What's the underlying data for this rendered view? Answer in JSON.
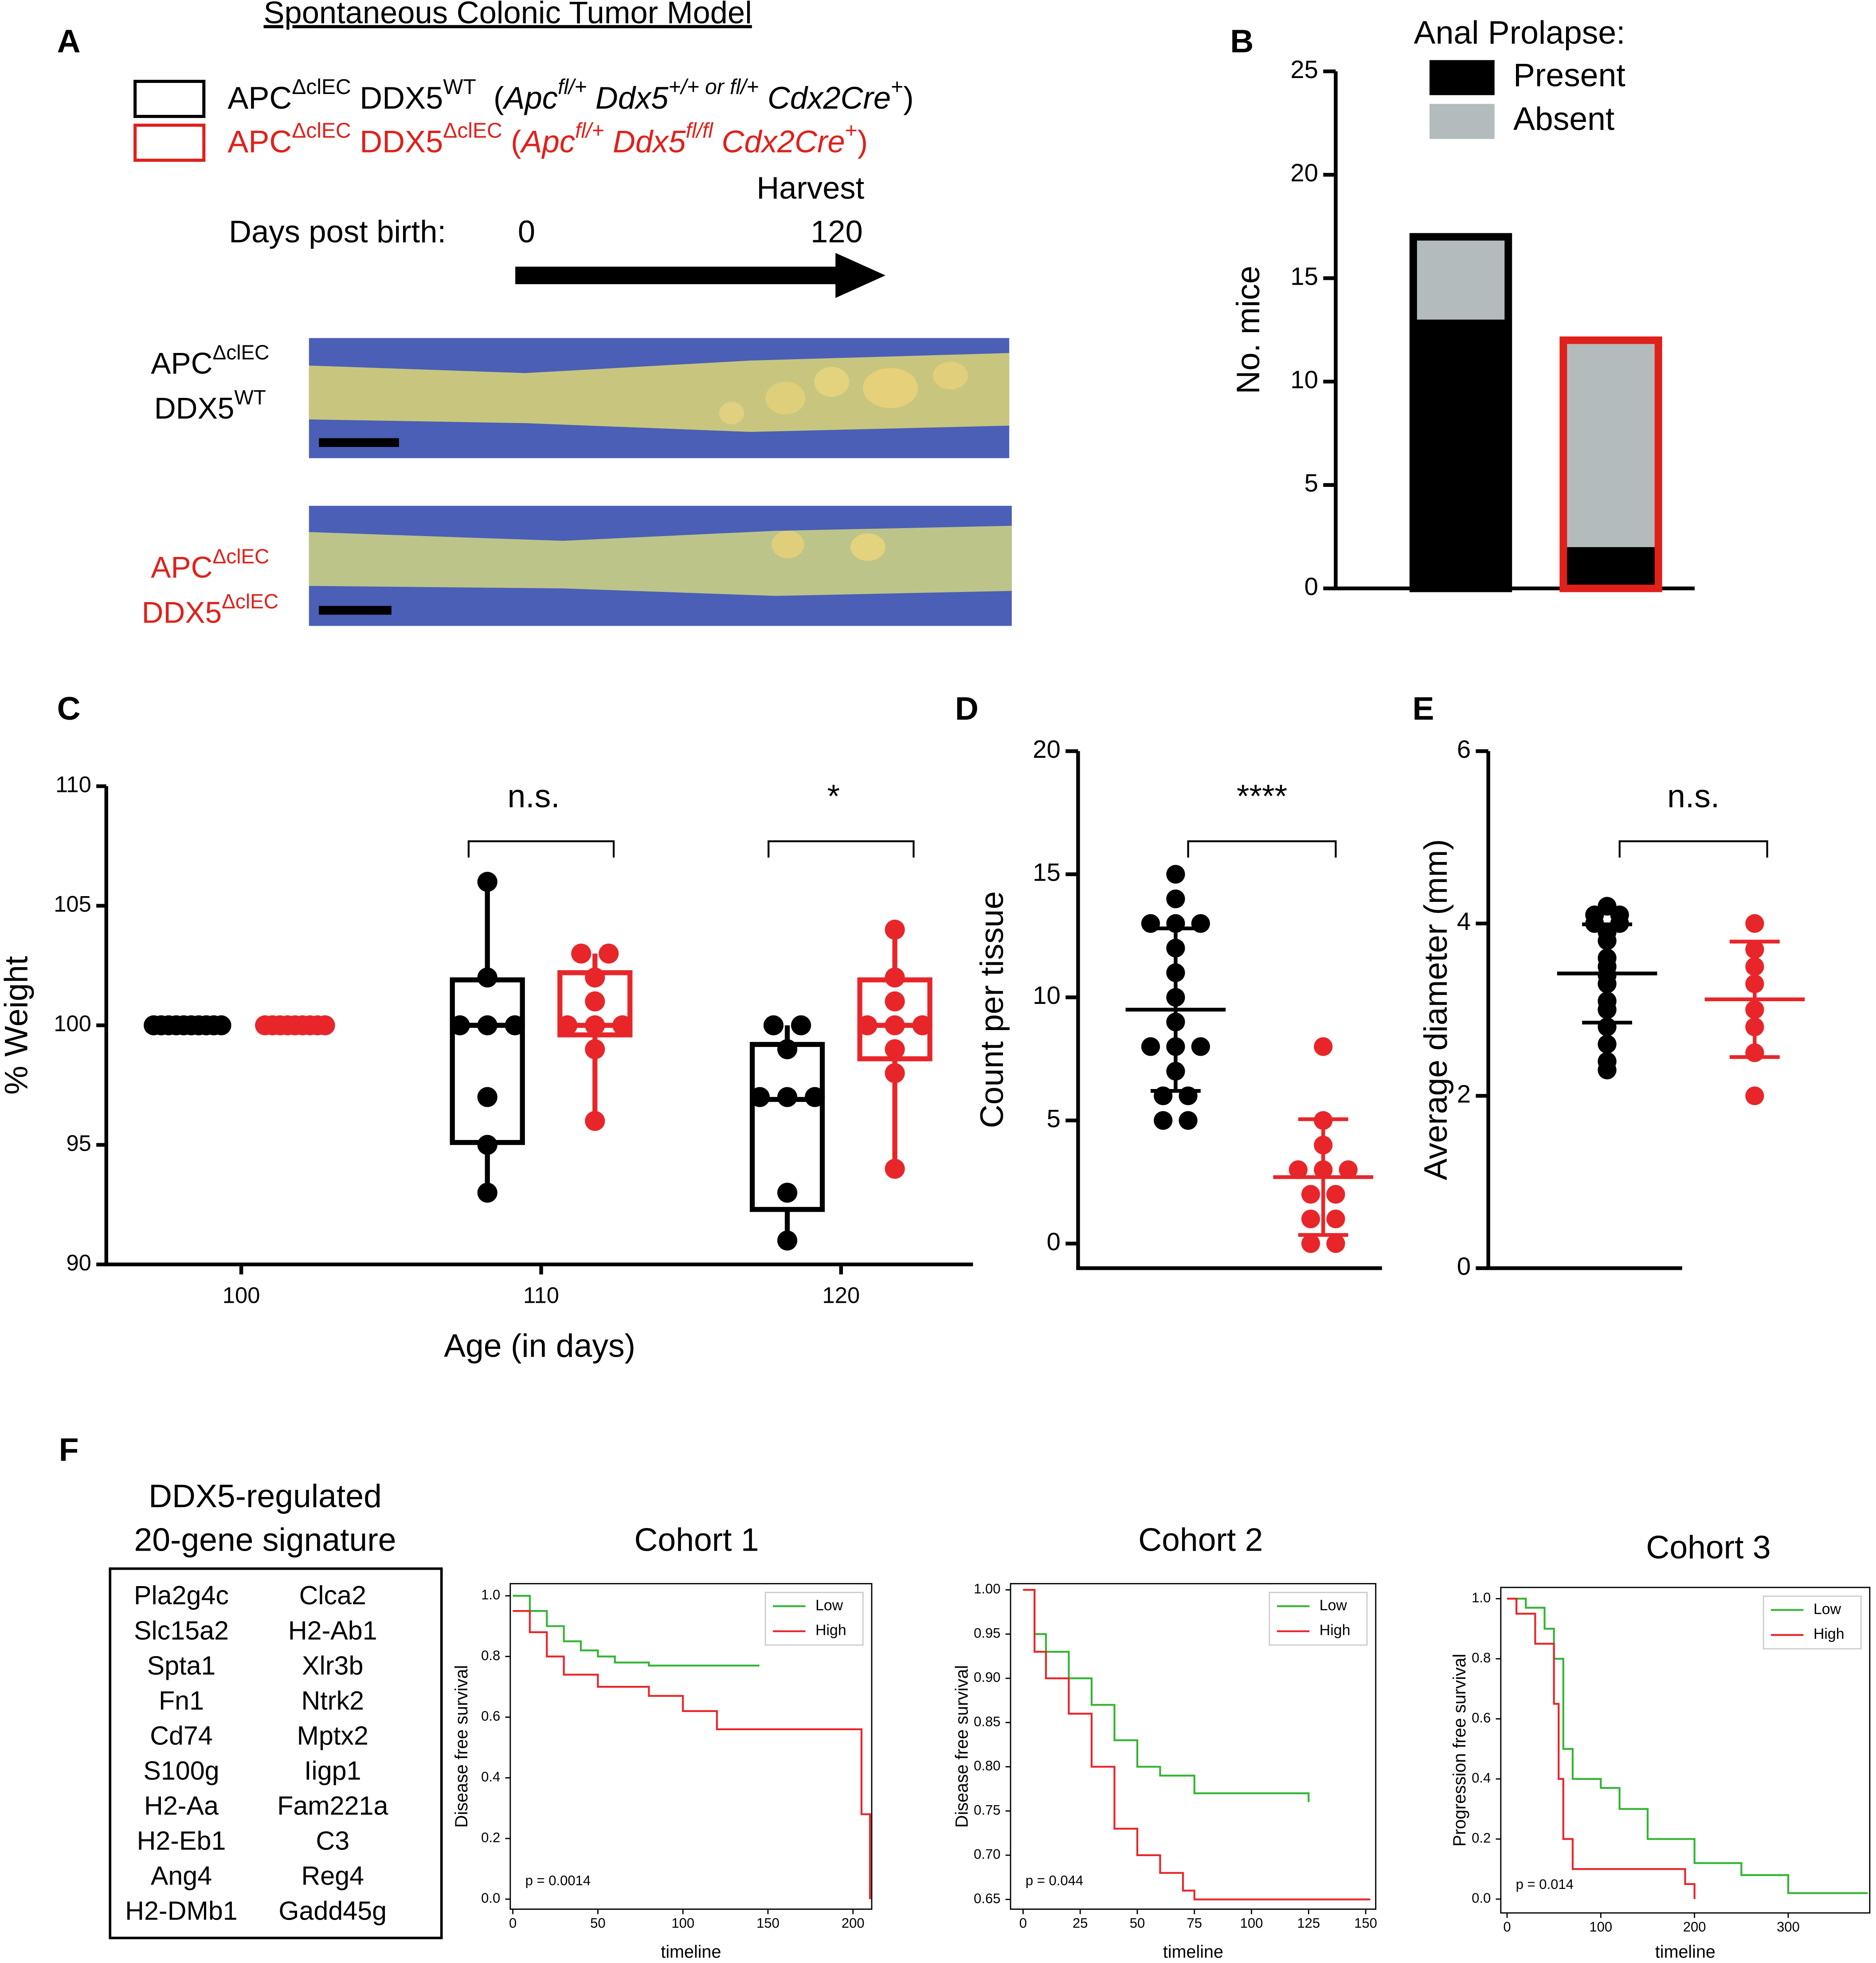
{
  "panel_labels": [
    "A",
    "B",
    "C",
    "D",
    "E",
    "F"
  ],
  "panel_a": {
    "title": "Spontaneous Colonic Tumor Model",
    "legend": [
      {
        "color": "#000000",
        "parts": [
          {
            "text": "APC"
          },
          {
            "text": "ΔclEC",
            "sup": true
          },
          {
            "text": " DDX5"
          },
          {
            "text": "WT",
            "sup": true
          },
          {
            "text": "  ("
          },
          {
            "text": "Apc",
            "italic": true
          },
          {
            "text": "fl/+",
            "sup": true,
            "italic": true
          },
          {
            "text": " Ddx5",
            "italic": true
          },
          {
            "text": "+/+ or fl/+",
            "sup": true,
            "italic": true
          },
          {
            "text": " Cdx2Cre",
            "italic": true
          },
          {
            "text": "+",
            "sup": true
          },
          {
            "text": ")"
          }
        ]
      },
      {
        "color": "#e0201b",
        "parts": [
          {
            "text": "APC"
          },
          {
            "text": "ΔclEC",
            "sup": true
          },
          {
            "text": " DDX5"
          },
          {
            "text": "ΔclEC",
            "sup": true
          },
          {
            "text": " ("
          },
          {
            "text": "Apc",
            "italic": true
          },
          {
            "text": "fl/+",
            "sup": true,
            "italic": true
          },
          {
            "text": " Ddx5",
            "italic": true
          },
          {
            "text": "fl/fl",
            "sup": true,
            "italic": true
          },
          {
            "text": " Cdx2Cre",
            "italic": true
          },
          {
            "text": "+",
            "sup": true
          },
          {
            "text": ")"
          }
        ]
      }
    ],
    "timeline": {
      "label": "Days post birth:",
      "start": 0,
      "end": 120,
      "event": "Harvest"
    },
    "images": [
      {
        "color": "#000000",
        "label": [
          [
            {
              "text": "APC"
            },
            {
              "text": "ΔclEC",
              "sup": true
            }
          ],
          [
            {
              "text": "DDX5"
            },
            {
              "text": "WT",
              "sup": true
            }
          ]
        ]
      },
      {
        "color": "#e0201b",
        "label": [
          [
            {
              "text": "APC"
            },
            {
              "text": "ΔclEC",
              "sup": true
            }
          ],
          [
            {
              "text": "DDX5"
            },
            {
              "text": "ΔclEC",
              "sup": true
            }
          ]
        ]
      }
    ]
  },
  "gene_signature": {
    "title": [
      "DDX5-regulated",
      "20-gene signature"
    ],
    "genes": [
      "Pla2g4c",
      "Slc15a2",
      "Spta1",
      "Fn1",
      "Cd74",
      "S100g",
      "H2-Aa",
      "H2-Eb1",
      "Ang4",
      "H2-DMb1",
      "Clca2",
      "H2-Ab1",
      "Xlr3b",
      "Ntrk2",
      "Mptx2",
      "Iigp1",
      "Fam221a",
      "C3",
      "Reg4",
      "Gadd45g"
    ]
  },
  "chart_data": [
    {
      "type": "bar",
      "stacked": true,
      "ylabel": "No. mice",
      "legend_title": "Anal Prolapse:",
      "legend": "upper right",
      "categories": [
        null,
        null
      ],
      "edgecolors": [
        "#000000",
        "#e0201b"
      ],
      "ylim": [
        0,
        25
      ],
      "yticks": [
        0,
        5,
        10,
        15,
        20,
        25
      ],
      "series": [
        {
          "name": "Present",
          "color": "#000000",
          "values": [
            13,
            2
          ]
        },
        {
          "name": "Absent",
          "color": "#b3bbbd",
          "values": [
            4,
            10
          ]
        }
      ]
    },
    {
      "type": "box",
      "xlabel": "Age (in days)",
      "ylabel": "% Weight",
      "xlim": [
        95.5,
        124.4
      ],
      "xticks": [
        100,
        110,
        120
      ],
      "ylim": [
        90,
        110
      ],
      "yticks": [
        90,
        95,
        100,
        105,
        110
      ],
      "series": [
        {
          "color": "#000000",
          "groups": [
            {
              "x": 100,
              "values": [
                100,
                100,
                100,
                100,
                100,
                100,
                100,
                100,
                100,
                100
              ]
            },
            {
              "x": 110,
              "values": [
                106,
                102,
                100,
                100,
                100,
                97,
                95,
                93
              ],
              "box": {
                "whislo": 93,
                "q1": 95.1,
                "median": 100,
                "q3": 101.9,
                "whishi": 106
              }
            },
            {
              "x": 120,
              "values": [
                100,
                100,
                99,
                97,
                97,
                97,
                93,
                91
              ],
              "box": {
                "whislo": 91,
                "q1": 92.3,
                "median": 96.9,
                "q3": 99.2,
                "whishi": 100
              }
            }
          ]
        },
        {
          "color": "#e8262a",
          "groups": [
            {
              "x": 100,
              "values": [
                100,
                100,
                100,
                100,
                100,
                100,
                100,
                100,
                100
              ]
            },
            {
              "x": 110,
              "values": [
                103,
                103,
                102,
                101,
                100,
                100,
                100,
                99,
                96
              ],
              "box": {
                "whislo": 96,
                "q1": 99.6,
                "median": 100,
                "q3": 102.2,
                "whishi": 103
              }
            },
            {
              "x": 120,
              "values": [
                104,
                102,
                101,
                100,
                100,
                100,
                99,
                98,
                94
              ],
              "box": {
                "whislo": 94,
                "q1": 98.6,
                "median": 100,
                "q3": 101.9,
                "whishi": 104
              }
            }
          ]
        }
      ],
      "annotations": [
        {
          "text": "n.s.",
          "x": 110
        },
        {
          "text": "*",
          "x": 120
        }
      ]
    },
    {
      "type": "scatter",
      "ylabel": "Count per tissue",
      "categories": [
        null,
        null
      ],
      "ylim": [
        -1,
        20
      ],
      "yticks": [
        0,
        5,
        10,
        15,
        20
      ],
      "series": [
        {
          "color": "#000000",
          "values": [
            15,
            14,
            13,
            13,
            13,
            12,
            11,
            10,
            9,
            8,
            8,
            8,
            7,
            6,
            6,
            5,
            5
          ],
          "mean": 9.5,
          "sd": 3.3
        },
        {
          "color": "#e8262a",
          "values": [
            8,
            5,
            4,
            3,
            3,
            3,
            2,
            2,
            1,
            1,
            0,
            0
          ],
          "mean": 2.7,
          "sd": 2.35
        }
      ],
      "annotations": [
        {
          "text": "****"
        }
      ]
    },
    {
      "type": "scatter",
      "ylabel": "Average diameter (mm)",
      "categories": [
        null,
        null
      ],
      "ylim": [
        0,
        6
      ],
      "yticks": [
        0,
        2,
        4,
        6
      ],
      "series": [
        {
          "color": "#000000",
          "values": [
            4.2,
            4.1,
            4.1,
            4.0,
            4.0,
            3.9,
            3.8,
            3.6,
            3.5,
            3.4,
            3.3,
            3.1,
            3.0,
            2.8,
            2.6,
            2.4,
            2.3
          ],
          "mean": 3.42,
          "sd": 0.57
        },
        {
          "color": "#e8262a",
          "values": [
            4.0,
            3.7,
            3.5,
            3.3,
            3.0,
            2.8,
            2.5,
            2.0
          ],
          "mean": 3.12,
          "sd": 0.67
        }
      ],
      "annotations": [
        {
          "text": "n.s."
        }
      ]
    },
    {
      "type": "line",
      "step": true,
      "title": "Cohort 1",
      "xlabel": "timeline",
      "ylabel": "Disease free survival",
      "legend": "upper right",
      "annotations": [
        {
          "text": "p = 0.0014"
        }
      ],
      "xlim": [
        -1.5,
        211
      ],
      "xticks": [
        0,
        50,
        100,
        150,
        200
      ],
      "ylim": [
        -0.033,
        1.04
      ],
      "yticks": [
        {
          "value": 0,
          "label": "0.0"
        },
        {
          "value": 0.2,
          "label": "0.2"
        },
        {
          "value": 0.4,
          "label": "0.4"
        },
        {
          "value": 0.6,
          "label": "0.6"
        },
        {
          "value": 0.8,
          "label": "0.8"
        },
        {
          "value": 1,
          "label": "1.0"
        }
      ],
      "series": [
        {
          "name": "Low",
          "color": "#33b533",
          "x": [
            0,
            10,
            20,
            30,
            40,
            50,
            60,
            80,
            145
          ],
          "values": [
            1,
            0.95,
            0.9,
            0.85,
            0.82,
            0.8,
            0.78,
            0.77,
            0.77
          ]
        },
        {
          "name": "High",
          "color": "#e8262a",
          "x": [
            0,
            10,
            20,
            30,
            50,
            80,
            100,
            120,
            205,
            210
          ],
          "values": [
            0.95,
            0.88,
            0.8,
            0.74,
            0.7,
            0.67,
            0.62,
            0.56,
            0.28,
            0
          ]
        }
      ]
    },
    {
      "type": "line",
      "step": true,
      "title": "Cohort 2",
      "xlabel": "timeline",
      "ylabel": "Disease free survival",
      "legend": "upper right",
      "annotations": [
        {
          "text": "p = 0.044"
        }
      ],
      "xlim": [
        -5.5,
        154.4
      ],
      "xticks": [
        0,
        25,
        50,
        75,
        100,
        125,
        150
      ],
      "ylim": [
        0.639,
        1.007
      ],
      "yticks": [
        0.65,
        {
          "value": 0.7,
          "label": "0.70"
        },
        0.75,
        {
          "value": 0.8,
          "label": "0.80"
        },
        0.85,
        {
          "value": 0.9,
          "label": "0.90"
        },
        0.95,
        {
          "value": 1,
          "label": "1.00"
        }
      ],
      "series": [
        {
          "name": "Low",
          "color": "#33b533",
          "x": [
            0,
            5,
            10,
            20,
            30,
            40,
            50,
            60,
            75,
            125
          ],
          "values": [
            1,
            0.95,
            0.93,
            0.9,
            0.87,
            0.83,
            0.8,
            0.79,
            0.77,
            0.76
          ]
        },
        {
          "name": "High",
          "color": "#e8262a",
          "x": [
            0,
            5,
            10,
            20,
            30,
            40,
            50,
            60,
            70,
            75,
            152
          ],
          "values": [
            1,
            0.93,
            0.9,
            0.86,
            0.8,
            0.73,
            0.7,
            0.68,
            0.66,
            0.65,
            0.65
          ]
        }
      ]
    },
    {
      "type": "line",
      "step": true,
      "title": "Cohort 3",
      "xlabel": "timeline",
      "ylabel": "Progression free survival",
      "legend": "upper right",
      "annotations": [
        {
          "text": "p = 0.014"
        }
      ],
      "xlim": [
        -6.7,
        387
      ],
      "xticks": [
        0,
        100,
        200,
        300
      ],
      "ylim": [
        -0.046,
        1.0375
      ],
      "yticks": [
        {
          "value": 0,
          "label": "0.0"
        },
        {
          "value": 0.2,
          "label": "0.2"
        },
        {
          "value": 0.4,
          "label": "0.4"
        },
        {
          "value": 0.6,
          "label": "0.6"
        },
        {
          "value": 0.8,
          "label": "0.8"
        },
        {
          "value": 1,
          "label": "1.0"
        }
      ],
      "series": [
        {
          "name": "Low",
          "color": "#33b533",
          "x": [
            0,
            20,
            40,
            50,
            60,
            70,
            100,
            120,
            150,
            200,
            250,
            300,
            385
          ],
          "values": [
            1,
            0.97,
            0.9,
            0.8,
            0.5,
            0.4,
            0.37,
            0.3,
            0.2,
            0.12,
            0.08,
            0.02,
            0.02
          ]
        },
        {
          "name": "High",
          "color": "#e8262a",
          "x": [
            0,
            10,
            30,
            50,
            55,
            60,
            70,
            130,
            190,
            200
          ],
          "values": [
            1,
            0.95,
            0.85,
            0.65,
            0.4,
            0.2,
            0.1,
            0.1,
            0.05,
            0
          ]
        }
      ]
    }
  ]
}
